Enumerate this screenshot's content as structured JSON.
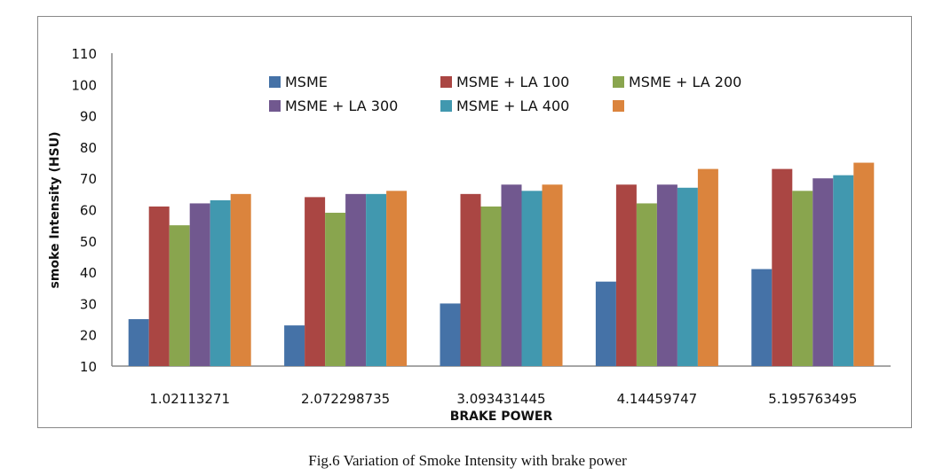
{
  "chart_data": {
    "type": "bar",
    "title": "",
    "xlabel": "BRAKE POWER",
    "ylabel": "smoke Intensity (HSU)",
    "ylim": [
      10,
      110
    ],
    "yticks": [
      10,
      20,
      30,
      40,
      50,
      60,
      70,
      80,
      90,
      100,
      110
    ],
    "grid": false,
    "legend_position": "top",
    "categories": [
      "1.02113271",
      "2.072298735",
      "3.093431445",
      "4.14459747",
      "5.195763495"
    ],
    "series": [
      {
        "name": "MSME",
        "color": "#4572A7",
        "values": [
          25,
          23,
          30,
          37,
          41
        ]
      },
      {
        "name": "MSME + LA 100",
        "color": "#AA4643",
        "values": [
          61,
          64,
          65,
          68,
          73
        ]
      },
      {
        "name": "MSME + LA 200",
        "color": "#89A54E",
        "values": [
          55,
          59,
          61,
          62,
          66
        ]
      },
      {
        "name": "MSME + LA 300",
        "color": "#71588F",
        "values": [
          62,
          65,
          68,
          68,
          70
        ]
      },
      {
        "name": "MSME + LA 400",
        "color": "#4198AF",
        "values": [
          63,
          65,
          66,
          67,
          71
        ]
      },
      {
        "name": "",
        "color": "#DB843D",
        "values": [
          65,
          66,
          68,
          73,
          75
        ]
      }
    ]
  },
  "caption": "Fig.6 Variation of Smoke Intensity with brake power"
}
